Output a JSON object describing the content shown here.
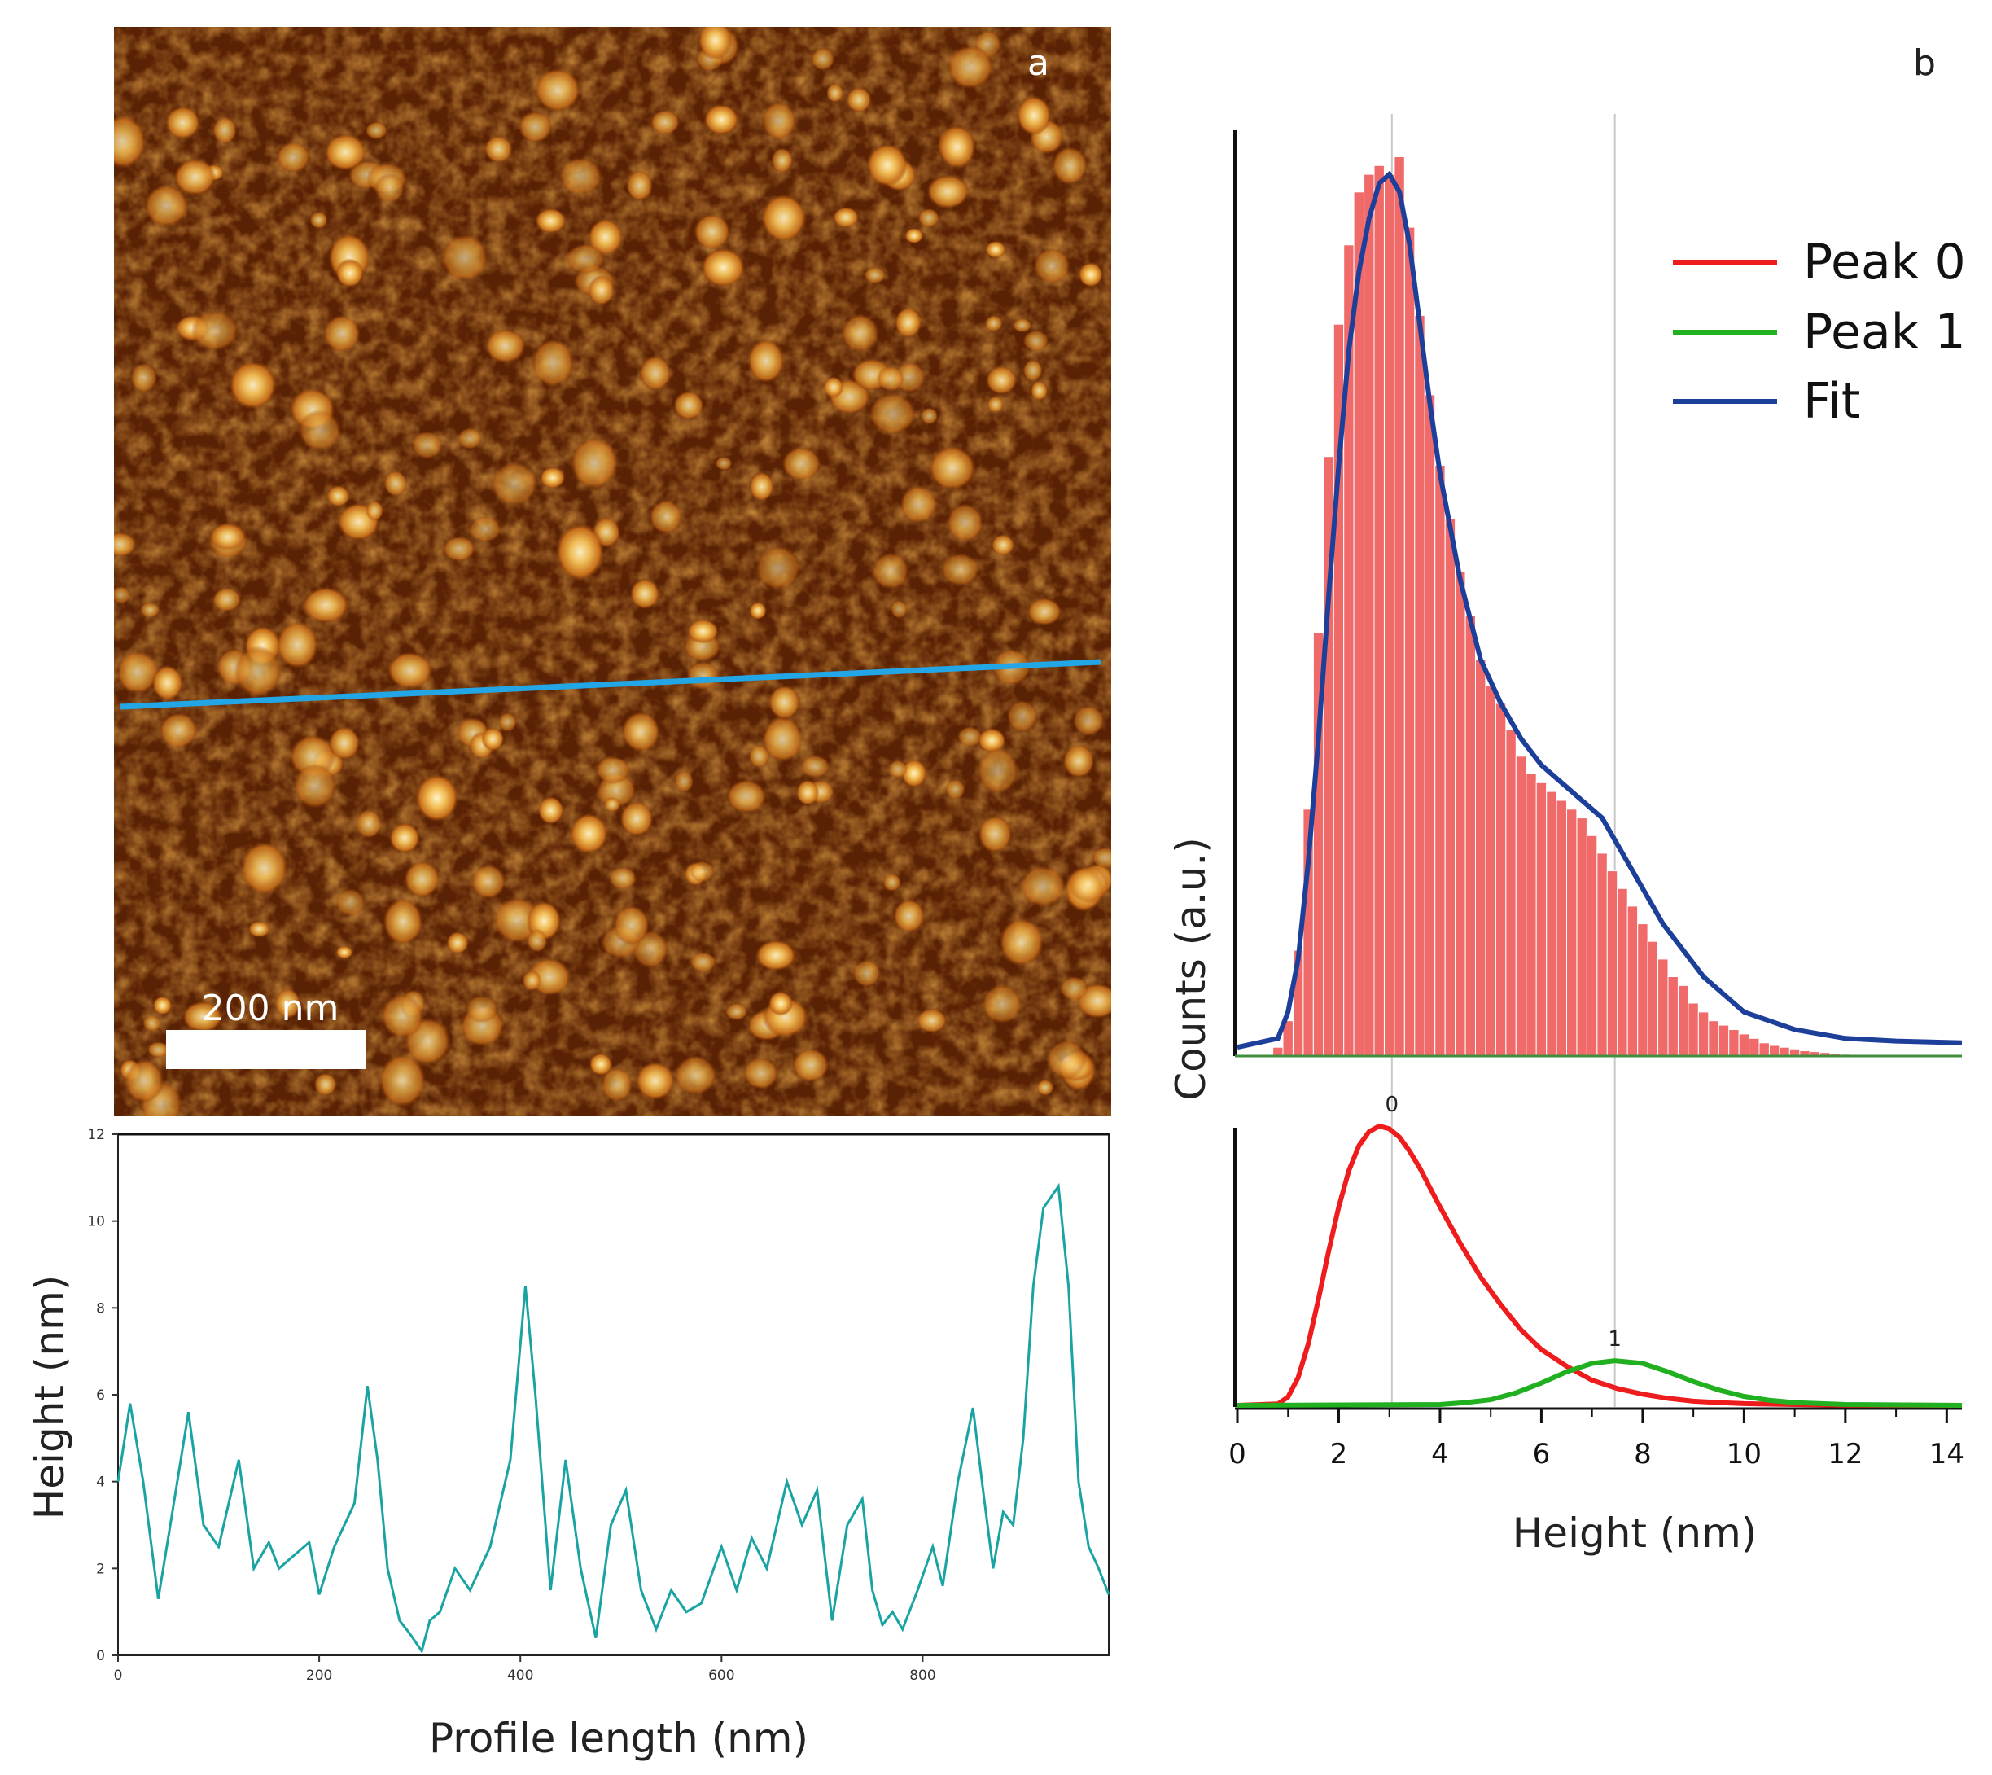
{
  "figure": {
    "panel_a_label": "a",
    "panel_b_label": "b",
    "scalebar_label": "200 nm"
  },
  "colors": {
    "profile_line": "#1aa3a3",
    "scan_line": "#22a6e6",
    "histogram_bar": "#f06a6a",
    "peak0": "#ee1c1c",
    "peak1": "#20b020",
    "fit": "#1c3f9a"
  },
  "chart_data": [
    {
      "type": "line",
      "panel": "a (bottom)",
      "xlabel": "Profile length (nm)",
      "ylabel": "Height (nm)",
      "xlim": [
        0,
        985
      ],
      "ylim": [
        0,
        12
      ],
      "xticks": [
        0,
        200,
        400,
        600,
        800
      ],
      "yticks": [
        0,
        2,
        4,
        6,
        8,
        10,
        12
      ],
      "series": [
        {
          "x": [
            0,
            12,
            25,
            40,
            52,
            70,
            85,
            100,
            120,
            135,
            150,
            160,
            175,
            190,
            200,
            215,
            235,
            248,
            258,
            268,
            280,
            290,
            302,
            310,
            320,
            335,
            350,
            370,
            390,
            405,
            415,
            430,
            445,
            460,
            475,
            490,
            505,
            520,
            535,
            550,
            565,
            580,
            600,
            615,
            630,
            645,
            665,
            680,
            695,
            710,
            725,
            740,
            750,
            760,
            770,
            780,
            795,
            810,
            820,
            835,
            850,
            860,
            870,
            880,
            890,
            900,
            910,
            920,
            935,
            945,
            955,
            965,
            975,
            985
          ],
          "values": [
            4.0,
            5.8,
            4.0,
            1.3,
            3.0,
            5.6,
            3.0,
            2.5,
            4.5,
            2.0,
            2.6,
            2.0,
            2.3,
            2.6,
            1.4,
            2.5,
            3.5,
            6.2,
            4.5,
            2.0,
            0.8,
            0.5,
            0.1,
            0.8,
            1.0,
            2.0,
            1.5,
            2.5,
            4.5,
            8.5,
            6.0,
            1.5,
            4.5,
            2.0,
            0.4,
            3.0,
            3.8,
            1.5,
            0.6,
            1.5,
            1.0,
            1.2,
            2.5,
            1.5,
            2.7,
            2.0,
            4.0,
            3.0,
            3.8,
            0.8,
            3.0,
            3.6,
            1.5,
            0.7,
            1.0,
            0.6,
            1.5,
            2.5,
            1.6,
            4.0,
            5.7,
            3.8,
            2.0,
            3.3,
            3.0,
            5.0,
            8.5,
            10.3,
            10.8,
            8.5,
            4.0,
            2.5,
            2.0,
            1.4
          ]
        }
      ]
    },
    {
      "type": "bar",
      "panel": "b (top)",
      "ylabel": "Counts (a.u.)",
      "xlim": [
        0,
        14.3
      ],
      "legend": [
        "Peak 0",
        "Peak 1",
        "Fit"
      ],
      "legend_position": "top-right",
      "reference_lines_x": [
        3.05,
        7.45
      ],
      "histogram": {
        "x": [
          0.8,
          1.0,
          1.2,
          1.4,
          1.6,
          1.8,
          2.0,
          2.2,
          2.4,
          2.6,
          2.8,
          3.0,
          3.2,
          3.4,
          3.6,
          3.8,
          4.0,
          4.2,
          4.4,
          4.6,
          4.8,
          5.0,
          5.2,
          5.4,
          5.6,
          5.8,
          6.0,
          6.2,
          6.4,
          6.6,
          6.8,
          7.0,
          7.2,
          7.4,
          7.6,
          7.8,
          8.0,
          8.2,
          8.4,
          8.6,
          8.8,
          9.0,
          9.2,
          9.4,
          9.6,
          9.8,
          10.0,
          10.2,
          10.4,
          10.6,
          10.8,
          11.0,
          11.2,
          11.4,
          11.6,
          11.8,
          12.0,
          12.2
        ],
        "values": [
          0.01,
          0.04,
          0.12,
          0.28,
          0.48,
          0.68,
          0.83,
          0.92,
          0.98,
          1.0,
          1.01,
          1.0,
          1.02,
          0.94,
          0.84,
          0.75,
          0.67,
          0.61,
          0.55,
          0.5,
          0.45,
          0.42,
          0.4,
          0.37,
          0.34,
          0.32,
          0.31,
          0.3,
          0.29,
          0.28,
          0.27,
          0.25,
          0.23,
          0.21,
          0.19,
          0.17,
          0.15,
          0.13,
          0.11,
          0.09,
          0.08,
          0.06,
          0.05,
          0.04,
          0.035,
          0.03,
          0.025,
          0.02,
          0.015,
          0.012,
          0.01,
          0.008,
          0.006,
          0.005,
          0.004,
          0.003,
          0.002,
          0.001
        ]
      },
      "fit": {
        "x": [
          0,
          0.8,
          1.0,
          1.2,
          1.4,
          1.6,
          1.8,
          2.0,
          2.2,
          2.4,
          2.6,
          2.8,
          3.0,
          3.2,
          3.4,
          3.6,
          3.8,
          4.0,
          4.4,
          4.8,
          5.2,
          5.6,
          6.0,
          6.4,
          6.8,
          7.2,
          7.6,
          8.0,
          8.4,
          8.8,
          9.2,
          9.6,
          10.0,
          10.5,
          11.0,
          11.5,
          12.0,
          13.0,
          14.3
        ],
        "values": [
          0.01,
          0.02,
          0.05,
          0.11,
          0.22,
          0.36,
          0.52,
          0.67,
          0.8,
          0.89,
          0.95,
          0.99,
          1.0,
          0.98,
          0.92,
          0.83,
          0.74,
          0.66,
          0.54,
          0.45,
          0.4,
          0.36,
          0.33,
          0.31,
          0.29,
          0.27,
          0.23,
          0.19,
          0.15,
          0.12,
          0.09,
          0.07,
          0.05,
          0.04,
          0.03,
          0.025,
          0.02,
          0.017,
          0.015
        ]
      }
    },
    {
      "type": "line",
      "panel": "b (bottom)",
      "xlabel": "Height (nm)",
      "xlim": [
        0,
        14.3
      ],
      "xticks": [
        0,
        2,
        4,
        6,
        8,
        10,
        12,
        14
      ],
      "peak_labels": [
        {
          "text": "0",
          "x": 3.05
        },
        {
          "text": "1",
          "x": 7.45
        }
      ],
      "series": [
        {
          "name": "Peak 0",
          "x": [
            0,
            0.8,
            1.0,
            1.2,
            1.4,
            1.6,
            1.8,
            2.0,
            2.2,
            2.4,
            2.6,
            2.8,
            3.0,
            3.2,
            3.4,
            3.6,
            3.8,
            4.0,
            4.4,
            4.8,
            5.2,
            5.6,
            6.0,
            6.5,
            7.0,
            7.5,
            8.0,
            8.5,
            9.0,
            9.5,
            10.0,
            11.0,
            12.0,
            14.3
          ],
          "values": [
            0.0,
            0.005,
            0.03,
            0.1,
            0.22,
            0.38,
            0.55,
            0.71,
            0.84,
            0.93,
            0.98,
            1.0,
            0.99,
            0.96,
            0.91,
            0.85,
            0.78,
            0.71,
            0.58,
            0.46,
            0.36,
            0.27,
            0.2,
            0.14,
            0.09,
            0.06,
            0.04,
            0.025,
            0.015,
            0.01,
            0.006,
            0.003,
            0.001,
            0.0
          ]
        },
        {
          "name": "Peak 1",
          "x": [
            0,
            4.0,
            4.5,
            5.0,
            5.5,
            6.0,
            6.5,
            7.0,
            7.45,
            8.0,
            8.5,
            9.0,
            9.5,
            10.0,
            10.5,
            11.0,
            12.0,
            14.3
          ],
          "values": [
            0.0,
            0.003,
            0.01,
            0.02,
            0.045,
            0.08,
            0.12,
            0.15,
            0.16,
            0.15,
            0.12,
            0.085,
            0.055,
            0.032,
            0.018,
            0.01,
            0.003,
            0.0
          ]
        }
      ]
    }
  ]
}
